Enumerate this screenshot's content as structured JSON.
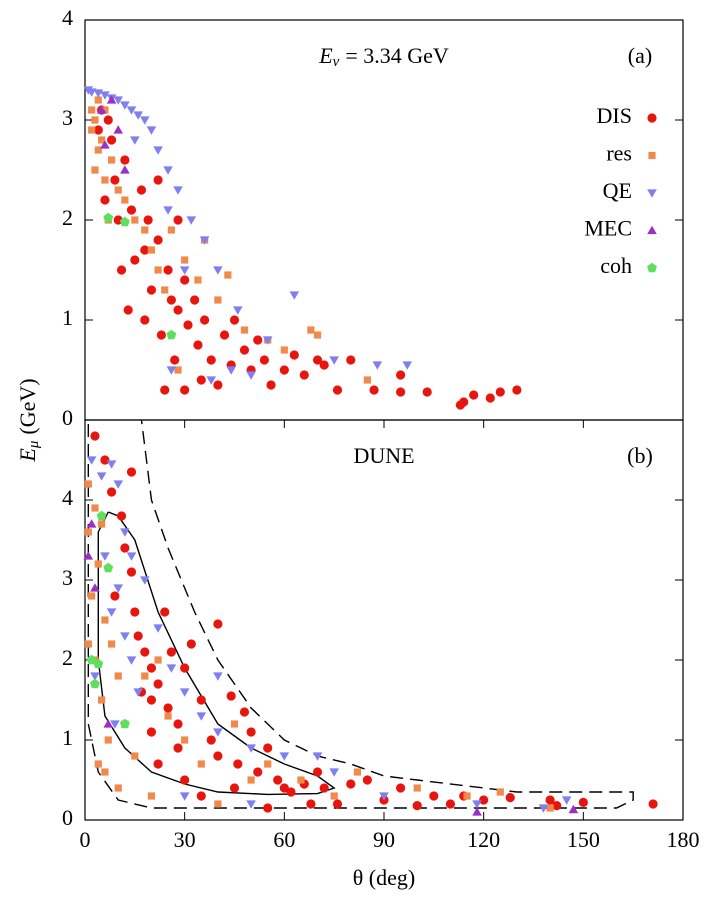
{
  "chart_data": [
    {
      "type": "scatter",
      "energy_label": {
        "symbol": "E",
        "subscript": "ν",
        "text": "= 3.34 GeV"
      },
      "panel_label": "(a)",
      "y_label": {
        "symbol": "E",
        "subscript": "μ",
        "text": "(GeV)"
      },
      "xlim": [
        0,
        180
      ],
      "ylim": [
        0,
        4
      ],
      "yticks": [
        0,
        1,
        2,
        3,
        4
      ],
      "legend": "upper right",
      "series": [
        {
          "name": "DIS",
          "color": "#e8150f",
          "marker": "circle",
          "x": [
            113,
            114,
            117,
            122,
            125,
            130,
            103,
            95,
            95,
            87,
            80,
            76,
            72,
            70,
            66,
            63,
            60,
            56,
            54,
            50,
            48,
            44,
            42,
            40,
            38,
            36,
            34,
            33,
            31,
            30,
            28,
            27,
            25,
            23,
            22,
            20,
            19,
            18,
            17,
            15,
            14,
            13,
            12,
            11,
            10,
            9,
            8,
            7,
            6,
            5,
            4,
            24,
            30,
            35,
            45,
            52,
            28,
            22,
            18,
            26
          ],
          "y": [
            0.15,
            0.18,
            0.25,
            0.22,
            0.28,
            0.3,
            0.28,
            0.28,
            0.45,
            0.3,
            0.6,
            0.3,
            0.55,
            0.6,
            0.45,
            0.65,
            0.5,
            0.35,
            0.6,
            0.5,
            0.7,
            0.55,
            0.85,
            0.35,
            0.6,
            1.0,
            0.75,
            1.2,
            0.95,
            1.4,
            1.1,
            0.6,
            1.5,
            0.85,
            1.8,
            1.3,
            2.0,
            1.0,
            2.3,
            1.6,
            2.1,
            1.1,
            2.6,
            1.5,
            2.0,
            2.4,
            2.8,
            3.0,
            2.2,
            3.1,
            2.9,
            0.3,
            0.3,
            0.4,
            1.0,
            0.8,
            2.0,
            2.4,
            1.7,
            1.2
          ]
        },
        {
          "name": "res",
          "color": "#f08a4b",
          "marker": "square",
          "x": [
            2,
            3,
            4,
            2,
            3,
            5,
            6,
            7,
            8,
            10,
            12,
            15,
            18,
            20,
            22,
            24,
            26,
            30,
            34,
            40,
            48,
            55,
            60,
            68,
            70,
            85,
            28,
            36,
            43,
            4,
            6
          ],
          "y": [
            2.9,
            3.0,
            2.7,
            3.1,
            2.5,
            2.8,
            2.4,
            2.0,
            2.6,
            2.3,
            2.2,
            2.0,
            1.9,
            1.7,
            1.5,
            1.3,
            1.9,
            1.6,
            1.4,
            1.2,
            0.9,
            0.8,
            0.7,
            0.9,
            0.85,
            0.4,
            0.5,
            1.8,
            1.45,
            3.2,
            3.1
          ]
        },
        {
          "name": "QE",
          "color": "#7f7ff0",
          "marker": "tri-down",
          "x": [
            1,
            2,
            4,
            6,
            8,
            10,
            12,
            14,
            16,
            18,
            20,
            22,
            25,
            28,
            32,
            36,
            40,
            46,
            55,
            63,
            75,
            88,
            97,
            30,
            15,
            25,
            26,
            38,
            44,
            50
          ],
          "y": [
            3.3,
            3.28,
            3.27,
            3.25,
            3.22,
            3.2,
            3.15,
            3.1,
            3.05,
            3.0,
            2.9,
            2.7,
            2.5,
            2.3,
            2.0,
            1.8,
            1.5,
            1.1,
            0.8,
            1.25,
            0.6,
            0.55,
            0.55,
            1.5,
            2.8,
            2.1,
            0.5,
            0.4,
            0.5,
            0.45
          ]
        },
        {
          "name": "MEC",
          "color": "#9b30c8",
          "marker": "tri-up",
          "x": [
            5,
            6,
            10,
            12,
            8
          ],
          "y": [
            3.1,
            2.75,
            2.9,
            2.5,
            3.2
          ]
        },
        {
          "name": "coh",
          "color": "#5ee05e",
          "marker": "pentagon",
          "x": [
            7,
            12,
            26
          ],
          "y": [
            2.02,
            1.98,
            0.85
          ]
        }
      ]
    },
    {
      "type": "scatter",
      "title": "DUNE",
      "panel_label": "(b)",
      "x_label": "θ (deg)",
      "xlim": [
        0,
        180
      ],
      "xticks": [
        0,
        30,
        60,
        90,
        120,
        150,
        180
      ],
      "ylim": [
        0,
        5
      ],
      "yticks": [
        0,
        1,
        2,
        3,
        4
      ],
      "series": [
        {
          "name": "DIS",
          "color": "#e8150f",
          "marker": "circle",
          "x": [
            3,
            6,
            8,
            14,
            11,
            12,
            14,
            9,
            15,
            16,
            18,
            20,
            17,
            20,
            22,
            25,
            28,
            30,
            32,
            35,
            40,
            38,
            40,
            44,
            46,
            50,
            52,
            55,
            58,
            62,
            66,
            70,
            72,
            76,
            80,
            85,
            90,
            95,
            100,
            105,
            110,
            114,
            120,
            128,
            140,
            142,
            150,
            171,
            24,
            26,
            22,
            30,
            45,
            60,
            35,
            48,
            55,
            68,
            20,
            28
          ],
          "y": [
            4.8,
            4.5,
            4.1,
            4.35,
            3.8,
            3.4,
            3.1,
            2.8,
            2.6,
            2.3,
            2.1,
            1.9,
            1.6,
            1.5,
            1.7,
            1.4,
            1.2,
            1.9,
            2.2,
            1.5,
            2.45,
            1.0,
            0.8,
            1.55,
            0.7,
            1.1,
            0.6,
            0.9,
            0.5,
            0.35,
            0.45,
            0.6,
            0.4,
            0.2,
            0.45,
            0.5,
            0.25,
            0.4,
            0.18,
            0.3,
            0.2,
            0.3,
            0.25,
            0.28,
            0.25,
            0.18,
            0.22,
            0.2,
            2.6,
            2.1,
            0.7,
            0.5,
            0.4,
            0.4,
            0.3,
            1.35,
            0.15,
            0.2,
            1.1,
            0.9
          ]
        },
        {
          "name": "res",
          "color": "#f08a4b",
          "marker": "square",
          "x": [
            1,
            1,
            3,
            5,
            4,
            2,
            1,
            3,
            6,
            8,
            10,
            5,
            7,
            12,
            15,
            6,
            4,
            10,
            20,
            25,
            30,
            35,
            45,
            50,
            55,
            65,
            75,
            82,
            100,
            115,
            125,
            140,
            18,
            22,
            40
          ],
          "y": [
            4.2,
            3.6,
            3.9,
            3.7,
            3.2,
            2.8,
            2.2,
            2.0,
            2.5,
            2.2,
            1.8,
            1.5,
            1.0,
            1.2,
            0.8,
            0.6,
            0.7,
            0.4,
            0.3,
            1.3,
            1.0,
            0.7,
            1.2,
            0.5,
            0.7,
            0.5,
            0.3,
            0.6,
            0.4,
            0.3,
            0.35,
            0.15,
            1.8,
            2.0,
            0.2
          ]
        },
        {
          "name": "QE",
          "color": "#7f7ff0",
          "marker": "tri-down",
          "x": [
            2,
            5,
            8,
            10,
            12,
            14,
            6,
            10,
            8,
            12,
            14,
            18,
            22,
            26,
            30,
            35,
            40,
            50,
            60,
            70,
            75,
            90,
            118,
            138,
            145,
            3,
            9,
            30,
            50,
            40,
            16
          ],
          "y": [
            4.5,
            4.3,
            4.45,
            4.2,
            3.6,
            3.3,
            3.3,
            2.9,
            2.6,
            2.3,
            2.0,
            3.0,
            2.4,
            1.9,
            1.6,
            1.3,
            1.1,
            0.9,
            0.8,
            0.8,
            0.6,
            0.3,
            0.2,
            0.15,
            0.25,
            1.8,
            1.2,
            0.3,
            0.2,
            1.8,
            1.6
          ]
        },
        {
          "name": "MEC",
          "color": "#9b30c8",
          "marker": "tri-up",
          "x": [
            1,
            2,
            3,
            118,
            147,
            7
          ],
          "y": [
            3.3,
            3.7,
            2.9,
            0.1,
            0.13,
            1.2
          ]
        },
        {
          "name": "coh",
          "color": "#5ee05e",
          "marker": "pentagon",
          "x": [
            2,
            3,
            5,
            7,
            12,
            4
          ],
          "y": [
            2.0,
            1.7,
            3.8,
            3.15,
            1.2,
            1.95
          ]
        }
      ],
      "contours": [
        {
          "style": "dashed",
          "x": [
            1,
            1,
            4,
            10,
            20,
            60,
            100,
            160,
            165,
            165,
            130,
            100,
            90,
            80,
            70,
            60,
            50,
            40,
            33,
            25,
            20,
            17
          ],
          "y": [
            4.95,
            1.2,
            0.6,
            0.25,
            0.15,
            0.15,
            0.15,
            0.15,
            0.25,
            0.35,
            0.35,
            0.5,
            0.55,
            0.7,
            0.8,
            1.0,
            1.4,
            2.0,
            2.6,
            3.4,
            4.0,
            5.0
          ]
        },
        {
          "style": "solid",
          "x": [
            7,
            4,
            4,
            6,
            12,
            20,
            30,
            40,
            55,
            70,
            75,
            70,
            60,
            50,
            40,
            30,
            22,
            15,
            10,
            7
          ],
          "y": [
            3.85,
            3.6,
            2.0,
            1.3,
            0.9,
            0.6,
            0.45,
            0.35,
            0.32,
            0.33,
            0.4,
            0.55,
            0.7,
            0.9,
            1.2,
            1.9,
            2.6,
            3.5,
            3.8,
            3.85
          ]
        }
      ]
    }
  ]
}
